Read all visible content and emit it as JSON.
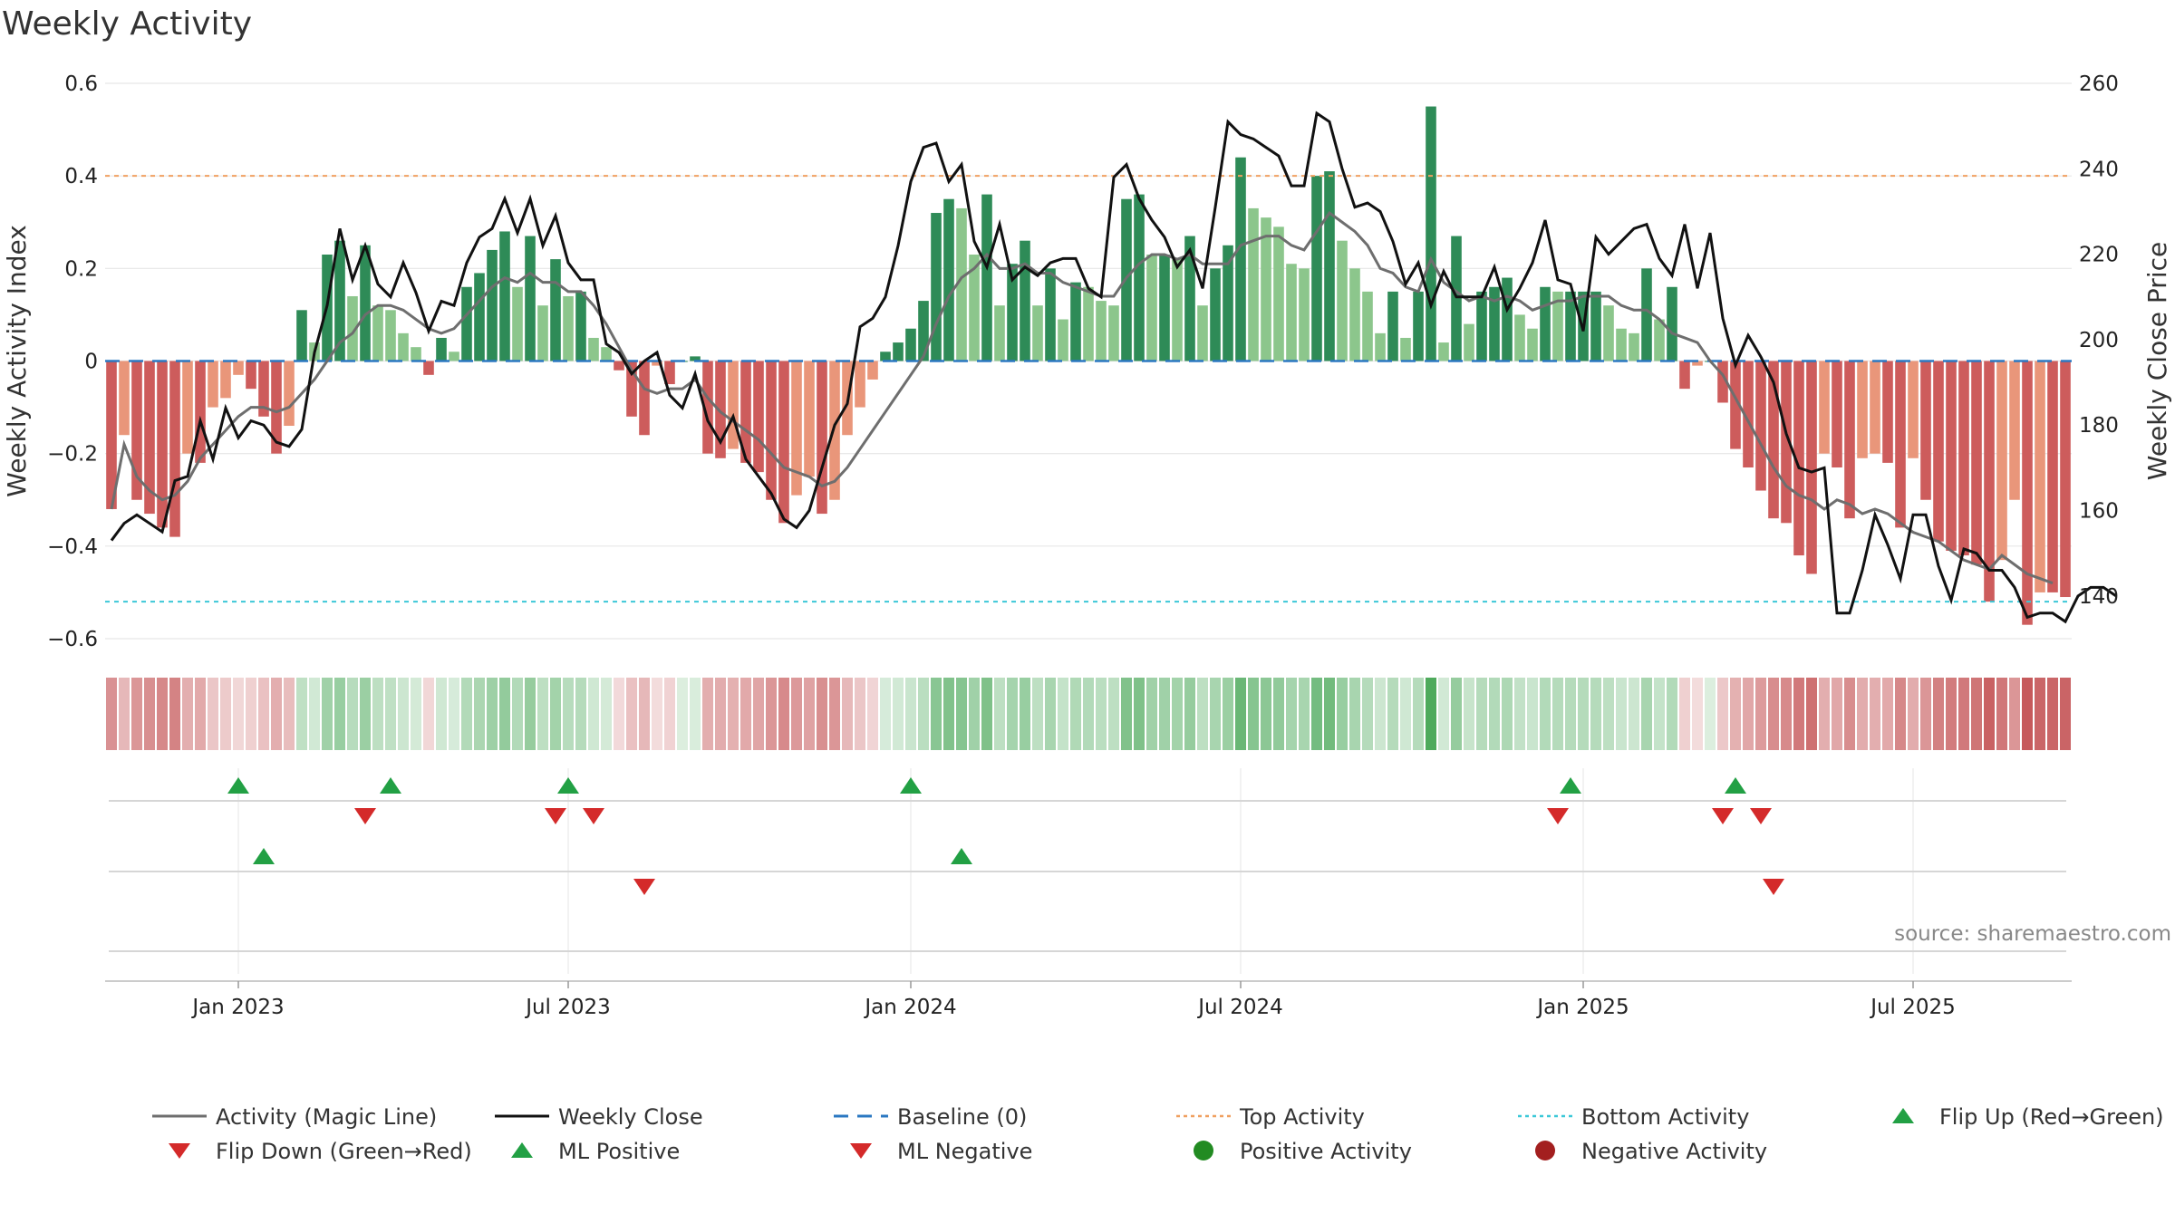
{
  "title": "Weekly Activity",
  "chart_data": {
    "type": "bar+line",
    "title": "Weekly Activity",
    "ylabel_left": "Weekly Activity Index",
    "ylabel_right": "Weekly Close Price",
    "source": "source: sharemaestro.com",
    "y_left_lim": [
      -0.6,
      0.6
    ],
    "y_left_ticks": [
      0.6,
      0.4,
      0.2,
      0,
      -0.2,
      -0.4,
      -0.6
    ],
    "y_left_tick_labels": [
      "0.6",
      "0.4",
      "0.2",
      "0",
      "−0.2",
      "−0.4",
      "−0.6"
    ],
    "y_right_lim": [
      130,
      260
    ],
    "y_right_ticks": [
      260,
      240,
      220,
      200,
      180,
      160,
      140
    ],
    "y_right_tick_labels": [
      "260",
      "240",
      "220",
      "200",
      "180",
      "160",
      "140"
    ],
    "x_tick_labels": [
      "Jan 2023",
      "Jul 2023",
      "Jan 2024",
      "Jul 2024",
      "Jan 2025",
      "Jul 2025"
    ],
    "x_tick_weeks": [
      10,
      36,
      63,
      89,
      116,
      142
    ],
    "top_activity": 0.4,
    "bottom_activity": -0.52,
    "activity": [
      -0.32,
      -0.16,
      -0.3,
      -0.33,
      -0.36,
      -0.38,
      -0.2,
      -0.22,
      -0.1,
      -0.08,
      -0.03,
      -0.06,
      -0.12,
      -0.2,
      -0.14,
      0.11,
      0.04,
      0.23,
      0.26,
      0.14,
      0.25,
      0.12,
      0.11,
      0.06,
      0.03,
      -0.03,
      0.05,
      0.02,
      0.16,
      0.19,
      0.24,
      0.28,
      0.16,
      0.27,
      0.12,
      0.22,
      0.14,
      0.15,
      0.05,
      0.03,
      -0.02,
      -0.12,
      -0.16,
      -0.01,
      -0.05,
      0.0,
      0.01,
      -0.2,
      -0.21,
      -0.19,
      -0.22,
      -0.24,
      -0.3,
      -0.35,
      -0.29,
      -0.25,
      -0.33,
      -0.3,
      -0.16,
      -0.1,
      -0.04,
      0.02,
      0.04,
      0.07,
      0.13,
      0.32,
      0.35,
      0.33,
      0.23,
      0.36,
      0.12,
      0.21,
      0.26,
      0.12,
      0.2,
      0.09,
      0.17,
      0.16,
      0.13,
      0.12,
      0.35,
      0.36,
      0.23,
      0.23,
      0.22,
      0.27,
      0.12,
      0.2,
      0.25,
      0.44,
      0.33,
      0.31,
      0.29,
      0.21,
      0.2,
      0.4,
      0.41,
      0.26,
      0.2,
      0.15,
      0.06,
      0.15,
      0.05,
      0.15,
      0.55,
      0.04,
      0.27,
      0.08,
      0.15,
      0.16,
      0.18,
      0.1,
      0.07,
      0.16,
      0.15,
      0.15,
      0.15,
      0.15,
      0.12,
      0.07,
      0.06,
      0.2,
      0.09,
      0.16,
      -0.06,
      -0.01,
      0.0,
      -0.09,
      -0.19,
      -0.23,
      -0.28,
      -0.34,
      -0.35,
      -0.42,
      -0.46,
      -0.2,
      -0.23,
      -0.34,
      -0.21,
      -0.2,
      -0.22,
      -0.36,
      -0.21,
      -0.3,
      -0.39,
      -0.41,
      -0.42,
      -0.44,
      -0.52,
      -0.43,
      -0.3,
      -0.57,
      -0.5,
      -0.5,
      -0.51
    ],
    "magic_line": [
      -0.32,
      -0.18,
      -0.25,
      -0.28,
      -0.3,
      -0.29,
      -0.26,
      -0.21,
      -0.18,
      -0.15,
      -0.12,
      -0.1,
      -0.1,
      -0.11,
      -0.1,
      -0.07,
      -0.04,
      0.0,
      0.04,
      0.06,
      0.1,
      0.12,
      0.12,
      0.11,
      0.09,
      0.07,
      0.06,
      0.07,
      0.1,
      0.13,
      0.16,
      0.18,
      0.17,
      0.19,
      0.17,
      0.17,
      0.15,
      0.15,
      0.12,
      0.08,
      0.03,
      -0.02,
      -0.06,
      -0.07,
      -0.06,
      -0.06,
      -0.04,
      -0.08,
      -0.11,
      -0.13,
      -0.15,
      -0.17,
      -0.2,
      -0.23,
      -0.24,
      -0.25,
      -0.27,
      -0.26,
      -0.23,
      -0.19,
      -0.15,
      -0.11,
      -0.07,
      -0.03,
      0.01,
      0.08,
      0.14,
      0.18,
      0.2,
      0.23,
      0.2,
      0.2,
      0.21,
      0.19,
      0.19,
      0.17,
      0.16,
      0.15,
      0.14,
      0.14,
      0.18,
      0.21,
      0.23,
      0.23,
      0.22,
      0.23,
      0.21,
      0.21,
      0.21,
      0.25,
      0.26,
      0.27,
      0.27,
      0.25,
      0.24,
      0.28,
      0.32,
      0.3,
      0.28,
      0.25,
      0.2,
      0.19,
      0.16,
      0.15,
      0.22,
      0.17,
      0.15,
      0.13,
      0.14,
      0.13,
      0.14,
      0.13,
      0.11,
      0.12,
      0.13,
      0.13,
      0.14,
      0.14,
      0.14,
      0.12,
      0.11,
      0.11,
      0.09,
      0.06,
      0.05,
      0.04,
      0.0,
      -0.03,
      -0.08,
      -0.13,
      -0.18,
      -0.23,
      -0.27,
      -0.29,
      -0.3,
      -0.32,
      -0.3,
      -0.31,
      -0.33,
      -0.32,
      -0.33,
      -0.35,
      -0.37,
      -0.38,
      -0.39,
      -0.41,
      -0.43,
      -0.44,
      -0.45,
      -0.42,
      -0.44,
      -0.46,
      -0.47,
      -0.48
    ],
    "weekly_close": [
      153,
      157,
      159,
      157,
      155,
      167,
      168,
      181,
      172,
      184,
      177,
      181,
      180,
      176,
      175,
      179,
      197,
      208,
      226,
      214,
      222,
      213,
      210,
      218,
      211,
      202,
      209,
      208,
      218,
      224,
      226,
      233,
      225,
      233,
      222,
      229,
      218,
      214,
      214,
      199,
      197,
      192,
      195,
      197,
      187,
      184,
      192,
      181,
      176,
      182,
      172,
      168,
      164,
      158,
      156,
      160,
      170,
      180,
      185,
      203,
      205,
      210,
      222,
      237,
      245,
      246,
      237,
      241,
      223,
      217,
      227,
      214,
      217,
      215,
      218,
      219,
      219,
      212,
      210,
      238,
      241,
      233,
      228,
      224,
      217,
      221,
      212,
      231,
      251,
      248,
      247,
      245,
      243,
      236,
      236,
      253,
      251,
      240,
      231,
      232,
      230,
      223,
      213,
      218,
      208,
      216,
      210,
      210,
      210,
      217,
      207,
      212,
      218,
      228,
      214,
      213,
      202,
      224,
      220,
      223,
      226,
      227,
      219,
      215,
      227,
      212,
      225,
      205,
      194,
      201,
      196,
      190,
      178,
      170,
      169,
      170,
      136,
      136,
      146,
      159,
      152,
      144,
      159,
      159,
      147,
      139,
      151,
      150,
      146,
      146,
      142,
      135,
      136,
      136,
      134,
      140,
      142,
      142,
      140
    ],
    "flip_up_weeks": [
      10,
      22,
      36,
      63,
      115,
      128
    ],
    "flip_down_weeks": [
      20,
      35,
      38,
      114,
      127,
      130
    ],
    "ml_positive_weeks": [
      12,
      67
    ],
    "ml_negative_weeks": [
      42,
      131
    ],
    "legend": [
      {
        "label": "Activity (Magic Line)",
        "kind": "line",
        "color": "#6e6e6e"
      },
      {
        "label": "Weekly Close",
        "kind": "line",
        "color": "#111111"
      },
      {
        "label": "Baseline (0)",
        "kind": "dashed",
        "color": "#2b78c2"
      },
      {
        "label": "Top Activity",
        "kind": "dotted",
        "color": "#f0a060"
      },
      {
        "label": "Bottom Activity",
        "kind": "dotted",
        "color": "#3cc8d8"
      },
      {
        "label": "Flip Up (Red→Green)",
        "kind": "triangle-up",
        "color": "#22a044"
      },
      {
        "label": "Flip Down (Green→Red)",
        "kind": "triangle-down",
        "color": "#d42a2a"
      },
      {
        "label": "ML Positive",
        "kind": "triangle-up",
        "color": "#22a044"
      },
      {
        "label": "ML Negative",
        "kind": "triangle-down",
        "color": "#d42a2a"
      },
      {
        "label": "Positive Activity",
        "kind": "dot",
        "color": "#228b22"
      },
      {
        "label": "Negative Activity",
        "kind": "dot",
        "color": "#a31f1f"
      }
    ],
    "colors": {
      "pos_dark": "#2e8b57",
      "pos_light": "#8cc68c",
      "neg_dark": "#cd5c5c",
      "neg_light": "#e9967a",
      "grid": "#e6e6e6",
      "magic_line": "#6e6e6e",
      "close_line": "#111111",
      "baseline": "#2b78c2",
      "top": "#f0a060",
      "bottom": "#3cc8d8",
      "up_marker": "#22a044",
      "down_marker": "#d42a2a"
    }
  }
}
